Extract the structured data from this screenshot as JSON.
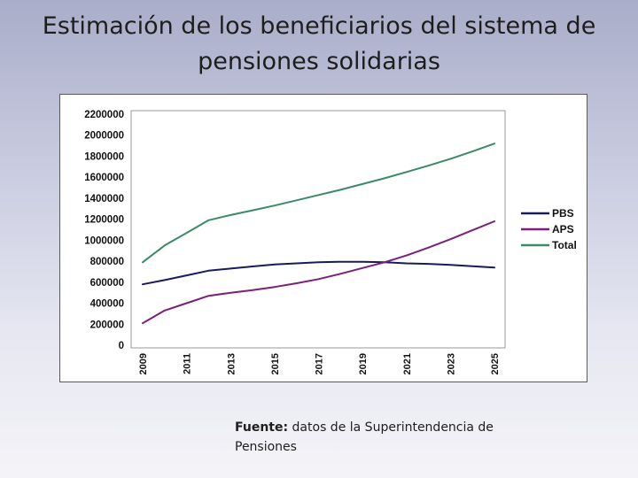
{
  "slide": {
    "title": "Estimación de los beneficiarios del sistema de pensiones solidarias",
    "source_label": "Fuente:",
    "source_text": " datos de la Superintendencia de Pensiones"
  },
  "chart_data": {
    "type": "line",
    "x": [
      2009,
      2010,
      2011,
      2012,
      2013,
      2014,
      2015,
      2016,
      2017,
      2018,
      2019,
      2020,
      2021,
      2022,
      2023,
      2024,
      2025
    ],
    "x_tick_labels": [
      "2009",
      "2011",
      "2013",
      "2015",
      "2017",
      "2019",
      "2021",
      "2023",
      "2025"
    ],
    "y_tick_labels": [
      "0",
      "200000",
      "400000",
      "600000",
      "800000",
      "1000000",
      "1200000",
      "1400000",
      "1600000",
      "1800000",
      "2000000",
      "2200000"
    ],
    "ylim": [
      0,
      2200000
    ],
    "grid": false,
    "legend_position": "right",
    "series": [
      {
        "name": "PBS",
        "color": "#1a1a5e",
        "values": [
          580000,
          620000,
          665000,
          710000,
          730000,
          750000,
          770000,
          780000,
          790000,
          795000,
          795000,
          790000,
          780000,
          775000,
          765000,
          752000,
          740000
        ]
      },
      {
        "name": "APS",
        "color": "#7b1f7a",
        "values": [
          210000,
          330000,
          400000,
          470000,
          500000,
          525000,
          555000,
          590000,
          630000,
          680000,
          735000,
          790000,
          855000,
          930000,
          1010000,
          1095000,
          1180000
        ]
      },
      {
        "name": "Total",
        "color": "#3a8a68",
        "values": [
          790000,
          950000,
          1070000,
          1190000,
          1240000,
          1285000,
          1330000,
          1380000,
          1430000,
          1480000,
          1535000,
          1590000,
          1650000,
          1710000,
          1775000,
          1845000,
          1920000
        ]
      }
    ]
  }
}
